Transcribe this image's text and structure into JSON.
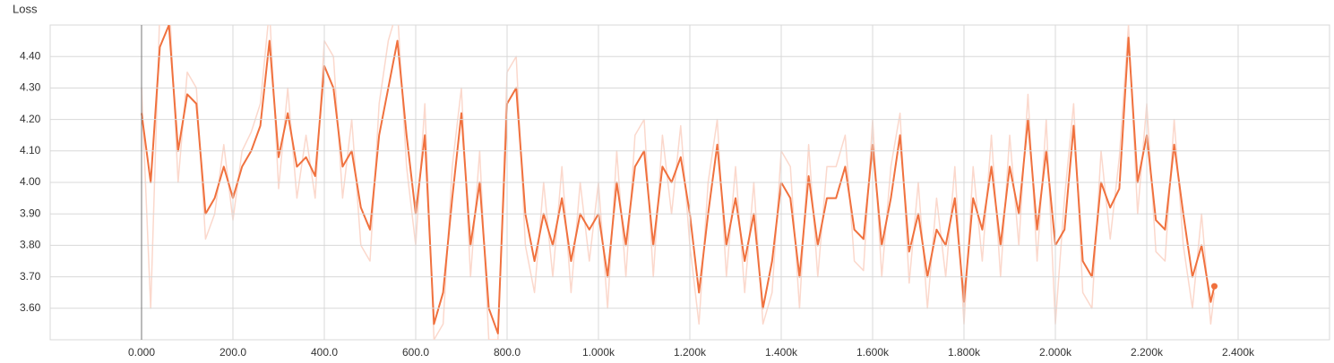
{
  "chart_data": {
    "type": "line",
    "title": "Loss",
    "x": [
      0,
      20,
      40,
      60,
      80,
      100,
      120,
      140,
      160,
      180,
      200,
      220,
      240,
      260,
      280,
      300,
      320,
      340,
      360,
      380,
      400,
      420,
      440,
      460,
      480,
      500,
      520,
      540,
      560,
      580,
      600,
      620,
      640,
      660,
      680,
      700,
      720,
      740,
      760,
      780,
      800,
      820,
      840,
      860,
      880,
      900,
      920,
      940,
      960,
      980,
      1000,
      1020,
      1040,
      1060,
      1080,
      1100,
      1120,
      1140,
      1160,
      1180,
      1200,
      1220,
      1240,
      1260,
      1280,
      1300,
      1320,
      1340,
      1360,
      1380,
      1400,
      1420,
      1440,
      1460,
      1480,
      1500,
      1520,
      1540,
      1560,
      1580,
      1600,
      1620,
      1640,
      1660,
      1680,
      1700,
      1720,
      1740,
      1760,
      1780,
      1800,
      1820,
      1840,
      1860,
      1880,
      1900,
      1920,
      1940,
      1960,
      1980,
      2000,
      2020,
      2040,
      2060,
      2080,
      2100,
      2120,
      2140,
      2160,
      2180,
      2200,
      2220,
      2240,
      2260,
      2280,
      2300,
      2320,
      2340,
      2348
    ],
    "series": [
      {
        "color": "#fbd8cc",
        "values": [
          4.3,
          3.6,
          4.55,
          4.6,
          4.0,
          4.35,
          4.3,
          3.82,
          3.9,
          4.12,
          3.88,
          4.1,
          4.16,
          4.25,
          4.55,
          3.98,
          4.3,
          3.95,
          4.15,
          3.95,
          4.45,
          4.4,
          3.95,
          4.2,
          3.8,
          3.75,
          4.25,
          4.45,
          4.55,
          4.05,
          3.8,
          4.25,
          3.5,
          3.55,
          4.05,
          4.3,
          3.7,
          4.1,
          3.5,
          3.5,
          4.35,
          4.4,
          3.8,
          3.65,
          4.0,
          3.7,
          4.05,
          3.65,
          4.0,
          3.75,
          4.0,
          3.6,
          4.1,
          3.7,
          4.15,
          4.2,
          3.7,
          4.15,
          3.9,
          4.18,
          3.8,
          3.55,
          4.0,
          4.2,
          3.7,
          4.05,
          3.65,
          4.0,
          3.55,
          3.65,
          4.1,
          4.05,
          3.6,
          4.12,
          3.7,
          4.05,
          4.05,
          4.15,
          3.75,
          3.72,
          4.2,
          3.7,
          4.05,
          4.22,
          3.68,
          4.0,
          3.6,
          3.95,
          3.7,
          4.05,
          3.55,
          4.05,
          3.75,
          4.15,
          3.7,
          4.15,
          3.8,
          4.28,
          3.75,
          4.2,
          3.55,
          3.95,
          4.25,
          3.65,
          3.6,
          4.1,
          3.82,
          4.08,
          4.5,
          3.9,
          4.25,
          3.78,
          3.75,
          4.2,
          3.8,
          3.6,
          3.9,
          3.55,
          3.65
        ]
      },
      {
        "color": "#f0713e",
        "values": [
          4.22,
          4.0,
          4.43,
          4.5,
          4.1,
          4.28,
          4.25,
          3.9,
          3.95,
          4.05,
          3.95,
          4.05,
          4.1,
          4.18,
          4.45,
          4.08,
          4.22,
          4.05,
          4.08,
          4.02,
          4.37,
          4.3,
          4.05,
          4.1,
          3.92,
          3.85,
          4.15,
          4.3,
          4.45,
          4.15,
          3.9,
          4.15,
          3.55,
          3.65,
          3.95,
          4.22,
          3.8,
          4.0,
          3.6,
          3.52,
          4.25,
          4.3,
          3.9,
          3.75,
          3.9,
          3.8,
          3.95,
          3.75,
          3.9,
          3.85,
          3.9,
          3.7,
          4.0,
          3.8,
          4.05,
          4.1,
          3.8,
          4.05,
          4.0,
          4.08,
          3.9,
          3.65,
          3.9,
          4.12,
          3.8,
          3.95,
          3.75,
          3.9,
          3.6,
          3.75,
          4.0,
          3.95,
          3.7,
          4.02,
          3.8,
          3.95,
          3.95,
          4.05,
          3.85,
          3.82,
          4.12,
          3.8,
          3.95,
          4.15,
          3.78,
          3.9,
          3.7,
          3.85,
          3.8,
          3.95,
          3.62,
          3.95,
          3.85,
          4.05,
          3.8,
          4.05,
          3.9,
          4.2,
          3.85,
          4.1,
          3.8,
          3.85,
          4.18,
          3.75,
          3.7,
          4.0,
          3.92,
          3.98,
          4.46,
          4.0,
          4.15,
          3.88,
          3.85,
          4.12,
          3.9,
          3.7,
          3.8,
          3.62,
          3.67
        ]
      }
    ],
    "xlim": [
      -200,
      2600
    ],
    "ylim": [
      3.5,
      4.5
    ],
    "xticks": [
      {
        "value": 0,
        "label": "0.000"
      },
      {
        "value": 200,
        "label": "200.0"
      },
      {
        "value": 400,
        "label": "400.0"
      },
      {
        "value": 600,
        "label": "600.0"
      },
      {
        "value": 800,
        "label": "800.0"
      },
      {
        "value": 1000,
        "label": "1.000k"
      },
      {
        "value": 1200,
        "label": "1.200k"
      },
      {
        "value": 1400,
        "label": "1.400k"
      },
      {
        "value": 1600,
        "label": "1.600k"
      },
      {
        "value": 1800,
        "label": "1.800k"
      },
      {
        "value": 2000,
        "label": "2.000k"
      },
      {
        "value": 2200,
        "label": "2.200k"
      },
      {
        "value": 2400,
        "label": "2.400k"
      }
    ],
    "yticks": [
      {
        "value": 3.6,
        "label": "3.60"
      },
      {
        "value": 3.7,
        "label": "3.70"
      },
      {
        "value": 3.8,
        "label": "3.80"
      },
      {
        "value": 3.9,
        "label": "3.90"
      },
      {
        "value": 4.0,
        "label": "4.00"
      },
      {
        "value": 4.1,
        "label": "4.10"
      },
      {
        "value": 4.2,
        "label": "4.20"
      },
      {
        "value": 4.3,
        "label": "4.30"
      },
      {
        "value": 4.4,
        "label": "4.40"
      }
    ],
    "grid": true
  }
}
